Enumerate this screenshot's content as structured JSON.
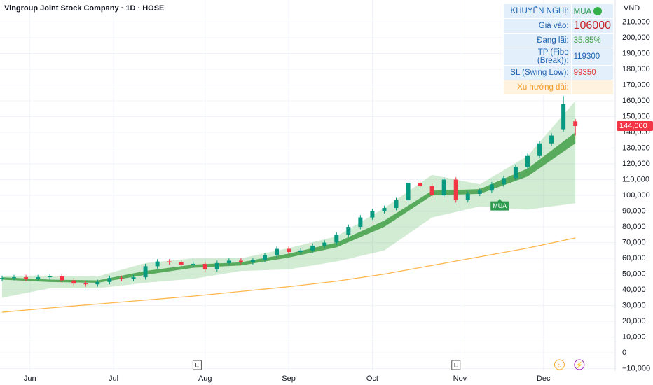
{
  "chart_data": {
    "type": "candlestick",
    "title": "Vingroup Joint Stock Company · 1D · HOSE",
    "currency": "VND",
    "grid": true,
    "colors": {
      "up": "#089981",
      "down": "#f23645",
      "cloud": "#4caf50",
      "fast": "#43a047",
      "long": "#ffb74d"
    },
    "xlim": [
      0,
      154
    ],
    "xticks": [
      {
        "value": 7,
        "label": "Jun"
      },
      {
        "value": 28,
        "label": "Jul"
      },
      {
        "value": 51,
        "label": "Aug"
      },
      {
        "value": 72,
        "label": "Sep"
      },
      {
        "value": 93,
        "label": "Oct"
      },
      {
        "value": 115,
        "label": "Nov"
      },
      {
        "value": 136,
        "label": "Dec"
      }
    ],
    "ylim": [
      -11500,
      224000
    ],
    "yticks": [
      {
        "value": -10000,
        "label": "−10,000"
      },
      0,
      {
        "value": 10000,
        "label": "10,000"
      },
      {
        "value": 20000,
        "label": "20,000"
      },
      {
        "value": 30000,
        "label": "30,000"
      },
      {
        "value": 40000,
        "label": "40,000"
      },
      {
        "value": 50000,
        "label": "50,000"
      },
      {
        "value": 60000,
        "label": "60,000"
      },
      {
        "value": 70000,
        "label": "70,000"
      },
      {
        "value": 80000,
        "label": "80,000"
      },
      {
        "value": 90000,
        "label": "90,000"
      },
      {
        "value": 100000,
        "label": "100,000"
      },
      {
        "value": 110000,
        "label": "110,000"
      },
      {
        "value": 120000,
        "label": "120,000"
      },
      {
        "value": 130000,
        "label": "130,000"
      },
      {
        "value": 140000,
        "label": "140,000"
      },
      {
        "value": 150000,
        "label": "150,000"
      },
      {
        "value": 160000,
        "label": "160,000"
      },
      {
        "value": 170000,
        "label": "170,000"
      },
      {
        "value": 180000,
        "label": "180,000"
      },
      {
        "value": 190000,
        "label": "190,000"
      },
      {
        "value": 200000,
        "label": "200,000"
      },
      {
        "value": 210000,
        "label": "210,000"
      }
    ],
    "candles": {
      "x": [
        0,
        3,
        6,
        9,
        12,
        15,
        18,
        21,
        24,
        27,
        30,
        33,
        36,
        39,
        42,
        45,
        48,
        51,
        54,
        57,
        60,
        63,
        66,
        69,
        72,
        75,
        78,
        81,
        84,
        87,
        90,
        93,
        96,
        99,
        102,
        105,
        108,
        111,
        114,
        117,
        120,
        123,
        126,
        129,
        132,
        135,
        138,
        141,
        144
      ],
      "open": [
        47000,
        47500,
        48000,
        47000,
        48000,
        48500,
        46000,
        44000,
        43500,
        45000,
        47500,
        47000,
        48000,
        55000,
        58000,
        57500,
        56000,
        56500,
        53000,
        57000,
        58500,
        57500,
        59000,
        62000,
        66000,
        64000,
        65000,
        68000,
        70000,
        75000,
        80000,
        86000,
        90000,
        92000,
        97000,
        108000,
        106000,
        100000,
        110000,
        97000,
        101000,
        103000,
        107000,
        111000,
        118000,
        125000,
        133000,
        142000,
        147000
      ],
      "high": [
        49000,
        49500,
        49500,
        49500,
        50000,
        50000,
        47500,
        45500,
        46500,
        49000,
        49000,
        49500,
        56500,
        59500,
        59500,
        59000,
        58000,
        58000,
        58500,
        60000,
        60000,
        60500,
        63500,
        67500,
        67500,
        66500,
        69500,
        71500,
        76500,
        81500,
        87500,
        91500,
        93500,
        98500,
        109500,
        109500,
        107500,
        111500,
        111500,
        102500,
        104500,
        108500,
        112500,
        119500,
        126500,
        134500,
        139500,
        163000,
        148500
      ],
      "low": [
        45500,
        46000,
        45500,
        45500,
        46500,
        44500,
        42500,
        42000,
        42000,
        43500,
        45500,
        45500,
        46500,
        53500,
        56000,
        54500,
        54500,
        51500,
        51500,
        55500,
        56000,
        56000,
        57500,
        60500,
        62500,
        62500,
        63500,
        66500,
        68500,
        73500,
        78500,
        84500,
        88500,
        90500,
        95500,
        104500,
        98500,
        98500,
        95500,
        95500,
        99500,
        101500,
        105500,
        109500,
        116500,
        123500,
        131500,
        140500,
        138000
      ],
      "close": [
        47500,
        48000,
        47000,
        48000,
        48500,
        46000,
        44000,
        43500,
        45000,
        47500,
        47000,
        48000,
        55000,
        58000,
        57500,
        56000,
        56500,
        53000,
        57000,
        58500,
        57500,
        59000,
        62000,
        66000,
        64000,
        65000,
        68000,
        70000,
        75000,
        80000,
        86000,
        90000,
        92000,
        97000,
        108000,
        106000,
        100000,
        110000,
        97000,
        101000,
        103000,
        107000,
        111000,
        118000,
        125000,
        133000,
        138000,
        158000,
        144000
      ]
    },
    "bands": {
      "x": [
        0,
        12,
        24,
        36,
        48,
        60,
        72,
        84,
        96,
        108,
        120,
        132,
        144
      ],
      "cloud_upper": [
        49000,
        49000,
        48500,
        57000,
        60000,
        60000,
        66500,
        74000,
        92000,
        113000,
        107000,
        125000,
        160000
      ],
      "cloud_lower": [
        35000,
        41000,
        41000,
        44500,
        47000,
        52000,
        53000,
        58000,
        65000,
        86000,
        93000,
        91000,
        95000
      ],
      "fast_upper": [
        48000,
        46500,
        46000,
        52000,
        56000,
        57500,
        63000,
        70000,
        84000,
        103000,
        104000,
        117000,
        140000
      ],
      "fast_lower": [
        46500,
        45000,
        44500,
        49500,
        54000,
        55500,
        60500,
        67000,
        80000,
        100000,
        101000,
        112000,
        133000
      ],
      "long_ma": [
        25800,
        28500,
        31000,
        33500,
        36000,
        39000,
        42000,
        45500,
        50000,
        55500,
        61000,
        66500,
        73000
      ]
    },
    "last_price": {
      "value": 144000,
      "label": "144,000"
    },
    "annotations": [
      {
        "text": "MUA",
        "x": 125,
        "y": 94000
      }
    ],
    "events": [
      {
        "label": "E",
        "x": 49
      },
      {
        "label": "E",
        "x": 114
      },
      {
        "label": "S",
        "x": 140
      },
      {
        "label": "⚡",
        "x": 145
      }
    ]
  },
  "panel": {
    "rows": [
      {
        "label": "KHUYẾN NGHỊ:",
        "value": "MUA"
      },
      {
        "label": "Giá vào:",
        "value": "106000"
      },
      {
        "label": "Đang lãi:",
        "value": "35.85%"
      },
      {
        "label": "TP (Fibo (Break)):",
        "value": "119300"
      },
      {
        "label": "SL (Swing Low):",
        "value": "99350"
      },
      {
        "label": "Xu hướng dài:"
      }
    ]
  }
}
